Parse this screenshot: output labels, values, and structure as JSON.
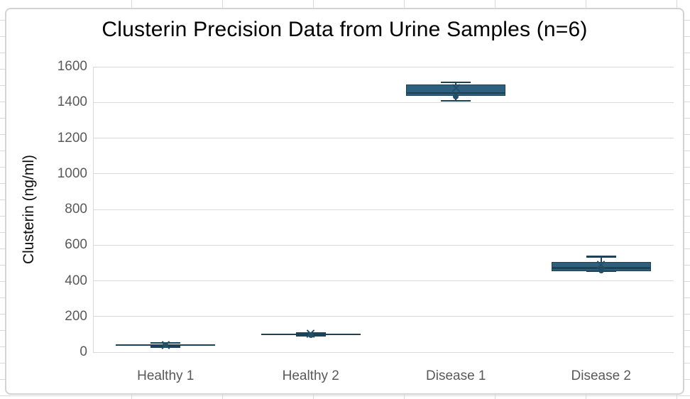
{
  "chart_data": {
    "type": "box",
    "title": "Clusterin Precision Data from Urine Samples (n=6)",
    "ylabel": "Clusterin (ng/ml)",
    "xlabel": "",
    "categories": [
      "Healthy 1",
      "Healthy 2",
      "Disease 1",
      "Disease 2"
    ],
    "y_ticks": [
      0,
      200,
      400,
      600,
      800,
      1000,
      1200,
      1400,
      1600
    ],
    "ylim": [
      0,
      1600
    ],
    "grid": true,
    "legend": "none",
    "n_per_group": 6,
    "boxes": [
      {
        "category": "Healthy 1",
        "min": 30,
        "q1": 38,
        "median": 40,
        "q3": 43,
        "max": 51,
        "mean": 41,
        "outlier": 40
      },
      {
        "category": "Healthy 2",
        "min": 93,
        "q1": 99,
        "median": 100,
        "q3": 102,
        "max": 107,
        "mean": 104,
        "outlier": 97
      },
      {
        "category": "Disease 1",
        "min": 1408,
        "q1": 1437,
        "median": 1452,
        "q3": 1500,
        "max": 1513,
        "mean": 1478,
        "outlier": 1432
      },
      {
        "category": "Disease 2",
        "min": 454,
        "q1": 454,
        "median": 472,
        "q3": 505,
        "max": 535,
        "mean": 490,
        "outlier": 457
      }
    ]
  },
  "colors": {
    "box_fill": "#2E607E",
    "box_border": "#1E4255",
    "marker": "#234E68",
    "gridline": "#D9D9D9",
    "tick_text": "#595959",
    "title_text": "#000000"
  }
}
